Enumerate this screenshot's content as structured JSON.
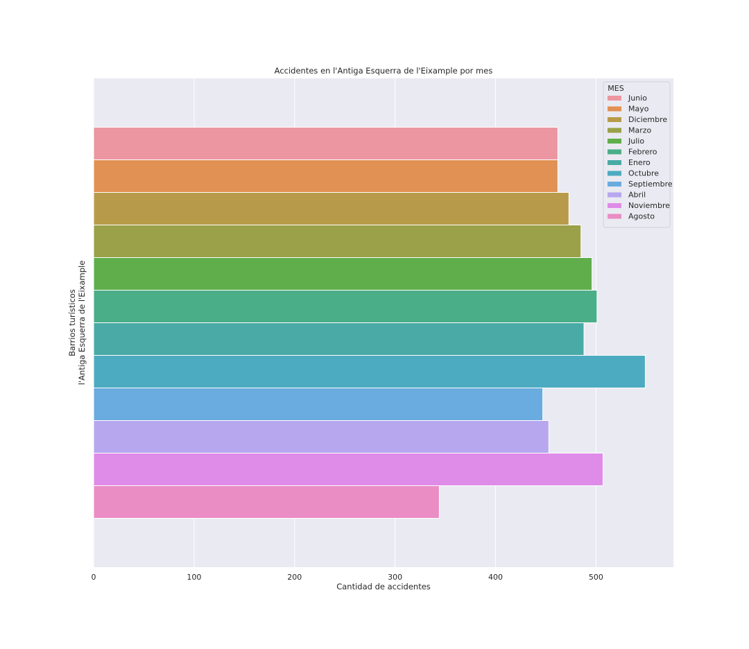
{
  "chart_data": {
    "type": "bar",
    "orientation": "horizontal",
    "title": "Accidentes en l'Antiga Esquerra de l'Eixample por mes",
    "xlabel": "Cantidad de accidentes",
    "ylabel": "Barrios turísticos",
    "categories": [
      "l'Antiga Esquerra de l'Eixample"
    ],
    "xlim": [
      0,
      577
    ],
    "xticks": [
      0,
      100,
      200,
      300,
      400,
      500
    ],
    "grid": true,
    "legend": {
      "title": "MES",
      "placement": "top-right"
    },
    "series": [
      {
        "name": "Junio",
        "values": [
          462
        ],
        "color": "#eb96a0"
      },
      {
        "name": "Mayo",
        "values": [
          462
        ],
        "color": "#e19153"
      },
      {
        "name": "Diciembre",
        "values": [
          473
        ],
        "color": "#b89b4a"
      },
      {
        "name": "Marzo",
        "values": [
          485
        ],
        "color": "#9aa148"
      },
      {
        "name": "Julio",
        "values": [
          496
        ],
        "color": "#60ae4b"
      },
      {
        "name": "Febrero",
        "values": [
          501
        ],
        "color": "#4aae88"
      },
      {
        "name": "Enero",
        "values": [
          488
        ],
        "color": "#4aaba6"
      },
      {
        "name": "Octubre",
        "values": [
          549
        ],
        "color": "#4cabc0"
      },
      {
        "name": "Septiembre",
        "values": [
          447
        ],
        "color": "#6aacdf"
      },
      {
        "name": "Abril",
        "values": [
          453
        ],
        "color": "#b7a7ee"
      },
      {
        "name": "Noviembre",
        "values": [
          507
        ],
        "color": "#df8ce8"
      },
      {
        "name": "Agosto",
        "values": [
          344
        ],
        "color": "#ea8dc4"
      }
    ]
  }
}
